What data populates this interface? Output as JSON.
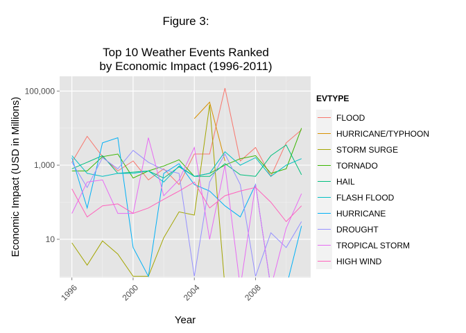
{
  "figure_caption": "Figure 3:",
  "chart_data": {
    "type": "line",
    "title_lines": [
      "Top 10 Weather Events Ranked",
      "by Economic Impact (1996-2011)"
    ],
    "xlabel": "Year",
    "ylabel": "Economic Impact (USD in Millions)",
    "x": [
      1996,
      1997,
      1998,
      1999,
      2000,
      2001,
      2002,
      2003,
      2004,
      2005,
      2006,
      2007,
      2008,
      2009,
      2010,
      2011
    ],
    "x_ticks": [
      1996,
      2000,
      2004,
      2008
    ],
    "x_tick_labels": [
      "1996",
      "2000",
      "2004",
      "2008"
    ],
    "xlim": [
      1995.2,
      2011.6
    ],
    "y_scale": "log10",
    "y_ticks": [
      10,
      1000,
      100000
    ],
    "y_tick_labels": [
      "10",
      "1,000",
      "100,000"
    ],
    "ylim": [
      0.93,
      250000
    ],
    "grid": true,
    "legend_title": "EVTYPE",
    "legend_position": "right",
    "series": [
      {
        "name": "FLOOD",
        "color": "#F8766D",
        "values": [
          1200,
          6000,
          1700,
          700,
          1300,
          400,
          800,
          300,
          2000,
          2000,
          120000,
          1300,
          3000,
          500,
          4000,
          9000
        ]
      },
      {
        "name": "HURRICANE/TYPHOON",
        "color": "#D89000",
        "values": [
          null,
          null,
          null,
          null,
          null,
          null,
          null,
          null,
          18000,
          50000,
          1300,
          null,
          null,
          null,
          null,
          null
        ]
      },
      {
        "name": "STORM SURGE",
        "color": "#A3A500",
        "values": [
          8,
          2,
          9,
          4,
          1,
          1,
          11,
          55,
          45,
          43000,
          0.5,
          null,
          null,
          null,
          null,
          null
        ]
      },
      {
        "name": "TORNADO",
        "color": "#39B600",
        "values": [
          700,
          700,
          1700,
          2000,
          450,
          700,
          950,
          1400,
          500,
          600,
          1000,
          1500,
          1800,
          600,
          800,
          10000
        ]
      },
      {
        "name": "HAIL",
        "color": "#00BF7D",
        "values": [
          800,
          1200,
          1800,
          600,
          650,
          700,
          450,
          900,
          500,
          500,
          1100,
          550,
          500,
          1800,
          3500,
          550
        ]
      },
      {
        "name": "FLASH FLOOD",
        "color": "#00BFC4",
        "values": [
          1800,
          600,
          500,
          600,
          600,
          700,
          350,
          950,
          500,
          600,
          2300,
          1000,
          1600,
          500,
          1000,
          1500
        ]
      },
      {
        "name": "HURRICANE",
        "color": "#00B0F6",
        "values": [
          1600,
          70,
          4000,
          5500,
          6,
          1,
          600,
          1100,
          300,
          200,
          80,
          40,
          300,
          0.5,
          0.5,
          23
        ]
      },
      {
        "name": "DROUGHT",
        "color": "#9590FF",
        "values": [
          1200,
          250,
          1600,
          800,
          2500,
          1200,
          750,
          600,
          1,
          350,
          2000,
          300,
          1,
          15,
          6,
          30
        ]
      },
      {
        "name": "TROPICAL STORM",
        "color": "#E76BF3",
        "values": [
          50,
          350,
          400,
          50,
          50,
          5500,
          150,
          400,
          3000,
          10,
          1000,
          0.5,
          300,
          0.5,
          20,
          170
        ]
      },
      {
        "name": "HIGH WIND",
        "color": "#FF62BC",
        "values": [
          230,
          40,
          80,
          90,
          50,
          70,
          120,
          200,
          350,
          70,
          150,
          200,
          250,
          100,
          30,
          80
        ]
      }
    ]
  }
}
